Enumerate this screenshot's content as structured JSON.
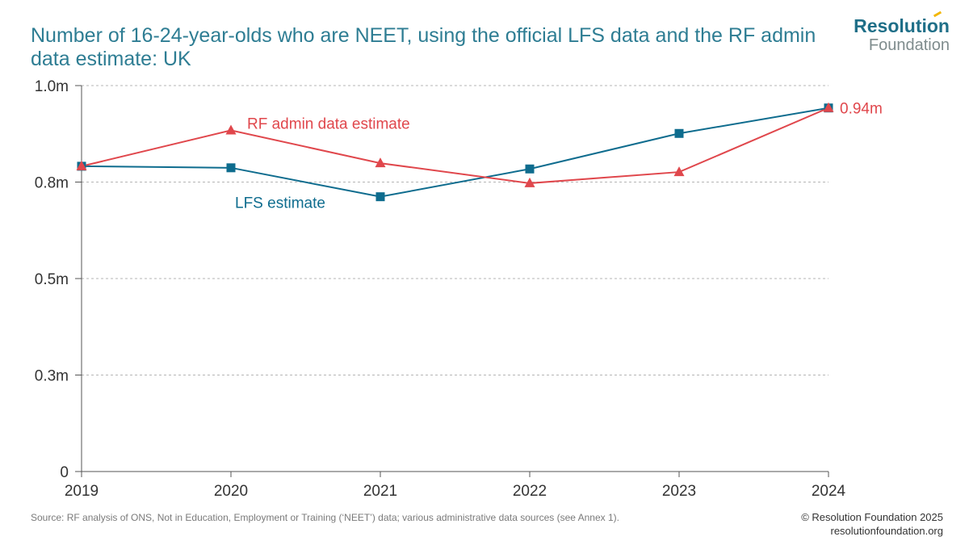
{
  "title": "Number of 16-24-year-olds who are NEET, using the official LFS data and the RF admin data estimate: UK",
  "logo": {
    "line1": "Resolution",
    "line2": "Foundation"
  },
  "source": "Source: RF analysis of ONS, Not in Education, Employment or Training (‘NEET’) data; various administrative data sources (see Annex 1).",
  "credit": {
    "line1": "© Resolution Foundation 2025",
    "line2": "resolutionfoundation.org"
  },
  "chart_data": {
    "type": "line",
    "x": [
      "2019",
      "2020",
      "2021",
      "2022",
      "2023",
      "2024"
    ],
    "yticks": [
      "0",
      "0.3m",
      "0.5m",
      "0.8m",
      "1.0m"
    ],
    "ylim": [
      0,
      1.0
    ],
    "grid": true,
    "series": [
      {
        "name": "LFS estimate",
        "color": "#0e6c8e",
        "marker": "square",
        "values": [
          0.791,
          0.787,
          0.712,
          0.784,
          0.876,
          0.942
        ]
      },
      {
        "name": "RF admin data estimate",
        "color": "#e0474c",
        "marker": "triangle",
        "values": [
          0.791,
          0.884,
          0.799,
          0.747,
          0.776,
          0.942
        ]
      }
    ],
    "end_label": {
      "text": "0.94m",
      "color": "#e0474c"
    }
  }
}
